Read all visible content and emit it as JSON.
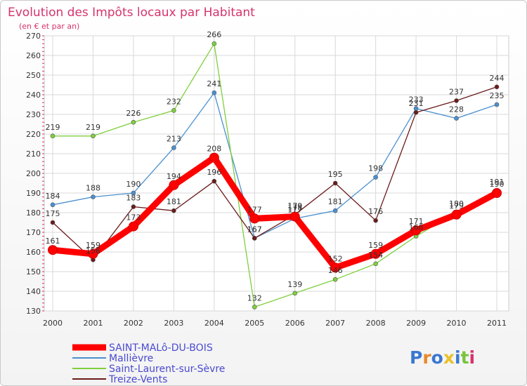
{
  "chart_data": {
    "type": "line",
    "title": "Evolution des Impôts locaux par Habitant",
    "subtitle": "(en € et par an)",
    "xlabel": "",
    "ylabel": "",
    "ylim": [
      130,
      270
    ],
    "grid": true,
    "categories": [
      "2000",
      "2001",
      "2002",
      "2003",
      "2004",
      "2005",
      "2006",
      "2007",
      "2008",
      "2009",
      "2010",
      "2011"
    ],
    "series": [
      {
        "name": "SAINT-MALô-DU-BOIS",
        "color": "#ff0000",
        "values": [
          161,
          159,
          173,
          194,
          208,
          177,
          178,
          152,
          159,
          171,
          179,
          190
        ]
      },
      {
        "name": "Mallièvre",
        "color": "#4a90d0",
        "values": [
          184,
          188,
          190,
          213,
          241,
          167,
          177,
          181,
          198,
          233,
          228,
          235
        ]
      },
      {
        "name": "Saint-Laurent-sur-Sèvre",
        "color": "#7fcf3c",
        "values": [
          219,
          219,
          226,
          232,
          266,
          132,
          139,
          146,
          154,
          168,
          180,
          191
        ]
      },
      {
        "name": "Treize-Vents",
        "color": "#6b1a1a",
        "values": [
          175,
          156,
          183,
          181,
          196,
          167,
          179,
          195,
          176,
          231,
          237,
          244
        ]
      }
    ]
  },
  "branding": {
    "text": "Proxiti"
  }
}
